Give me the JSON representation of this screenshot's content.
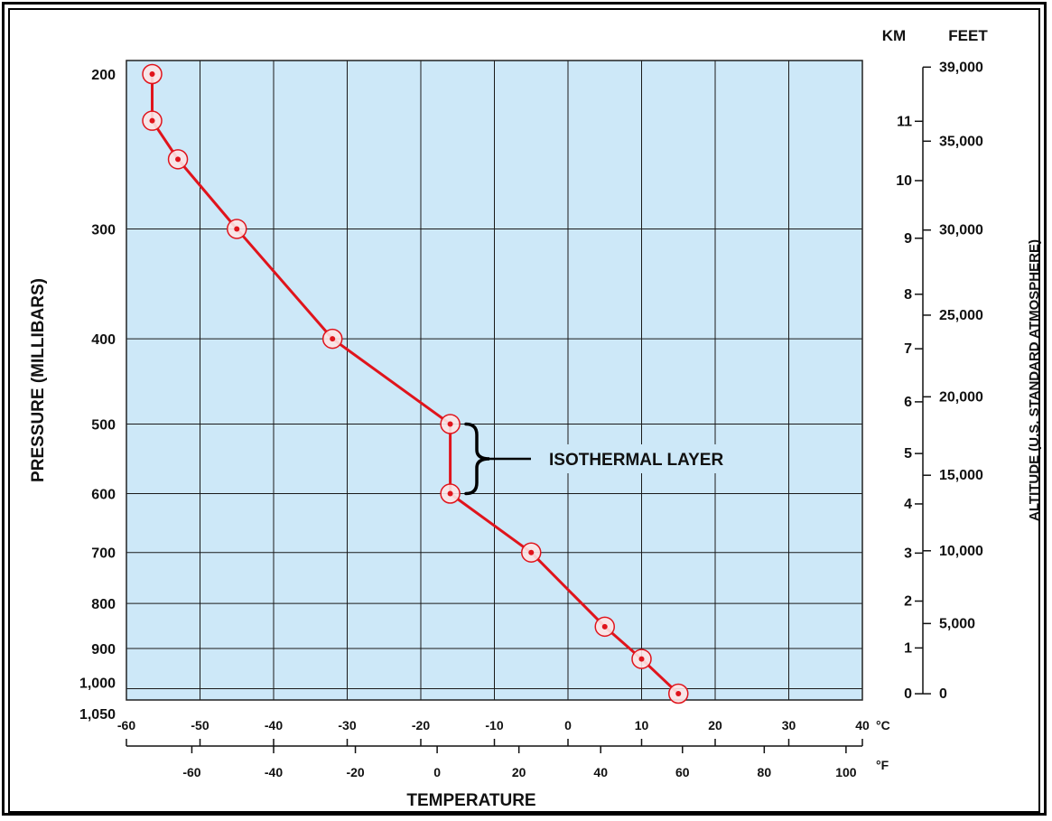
{
  "chart_data": {
    "type": "line",
    "title": "",
    "xlabel": "TEMPERATURE",
    "ylabel": "PRESSURE (MILLIBARS)",
    "right_axis_label": "ALTITUDE (U.S. STANDARD ATMOSPHERE)",
    "x_unit_celsius": "°C",
    "x_unit_fahrenheit": "°F",
    "km_header": "KM",
    "feet_header": "FEET",
    "xlim": [
      -60,
      40
    ],
    "ylim": [
      1050,
      200
    ],
    "y_scale": "log",
    "grid": true,
    "plot_background": "#cde8f8",
    "line_color": "#e0141c",
    "celsius_ticks": [
      "-60",
      "-50",
      "-40",
      "-30",
      "-20",
      "-10",
      "0",
      "10",
      "20",
      "30",
      "40"
    ],
    "fahrenheit_ticks": [
      "-60",
      "-40",
      "-20",
      "0",
      "20",
      "40",
      "60",
      "80",
      "100"
    ],
    "pressure_ticks": [
      "200",
      "300",
      "400",
      "500",
      "600",
      "700",
      "800",
      "900",
      "1,000",
      "1,050"
    ],
    "km_ticks": [
      "0",
      "1",
      "2",
      "3",
      "4",
      "5",
      "6",
      "7",
      "8",
      "9",
      "10",
      "11"
    ],
    "feet_ticks": [
      "0",
      "5,000",
      "10,000",
      "15,000",
      "20,000",
      "25,000",
      "30,000",
      "35,000",
      "39,000"
    ],
    "series": [
      {
        "x": [
          -56.5,
          -56.5,
          -53,
          -45,
          -32,
          -16,
          -16,
          -5,
          5,
          10,
          15
        ],
        "y": [
          200,
          226,
          250,
          300,
          400,
          500,
          600,
          700,
          850,
          925,
          1013
        ]
      }
    ],
    "annotations": [
      {
        "text": "ISOTHERMAL LAYER",
        "from_pressure": 500,
        "to_pressure": 600
      }
    ]
  }
}
